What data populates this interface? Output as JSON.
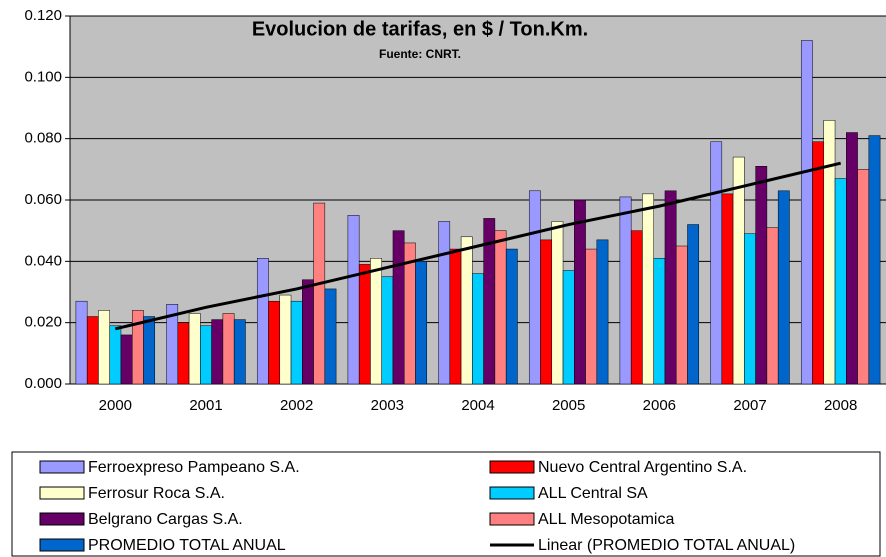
{
  "chart_data": {
    "type": "bar",
    "title": "Evolucion de tarifas, en $ / Ton.Km.",
    "subtitle": "Fuente: CNRT.",
    "categories": [
      "2000",
      "2001",
      "2002",
      "2003",
      "2004",
      "2005",
      "2006",
      "2007",
      "2008"
    ],
    "series": [
      {
        "name": "Ferroexpreso Pampeano S.A.",
        "color": "#9999ff",
        "values": [
          0.027,
          0.026,
          0.041,
          0.055,
          0.053,
          0.063,
          0.061,
          0.079,
          0.112
        ]
      },
      {
        "name": "Nuevo Central Argentino S.A.",
        "color": "#ff0000",
        "values": [
          0.022,
          0.02,
          0.027,
          0.039,
          0.044,
          0.047,
          0.05,
          0.062,
          0.079
        ]
      },
      {
        "name": "Ferrosur Roca S.A.",
        "color": "#ffffcc",
        "values": [
          0.024,
          0.023,
          0.029,
          0.041,
          0.048,
          0.053,
          0.062,
          0.074,
          0.086
        ]
      },
      {
        "name": "ALL Central SA",
        "color": "#00ccff",
        "values": [
          0.019,
          0.019,
          0.027,
          0.035,
          0.036,
          0.037,
          0.041,
          0.049,
          0.067
        ]
      },
      {
        "name": "Belgrano Cargas S.A.",
        "color": "#660066",
        "values": [
          0.016,
          0.021,
          0.034,
          0.05,
          0.054,
          0.06,
          0.063,
          0.071,
          0.082
        ]
      },
      {
        "name": "ALL Mesopotamica",
        "color": "#ff8080",
        "values": [
          0.024,
          0.023,
          0.059,
          0.046,
          0.05,
          0.044,
          0.045,
          0.051,
          0.07
        ]
      },
      {
        "name": "PROMEDIO TOTAL ANUAL",
        "color": "#0066cc",
        "values": [
          0.022,
          0.021,
          0.031,
          0.04,
          0.044,
          0.047,
          0.052,
          0.063,
          0.081
        ]
      }
    ],
    "trendline": {
      "name": "Linear (PROMEDIO TOTAL ANUAL)",
      "color": "#000000",
      "values": [
        0.018,
        0.025,
        0.031,
        0.038,
        0.045,
        0.052,
        0.058,
        0.065,
        0.072
      ]
    },
    "ylim": [
      0,
      0.12
    ],
    "yticks": [
      {
        "value": 0,
        "label": "0.000"
      },
      {
        "value": 0.02,
        "label": "0.020"
      },
      {
        "value": 0.04,
        "label": "0.040"
      },
      {
        "value": 0.06,
        "label": "0.060"
      },
      {
        "value": 0.08,
        "label": "0.080"
      },
      {
        "value": 0.1,
        "label": "0.100"
      },
      {
        "value": 0.12,
        "label": "0.120"
      }
    ],
    "grid": true,
    "background": "#c0c0c0"
  }
}
